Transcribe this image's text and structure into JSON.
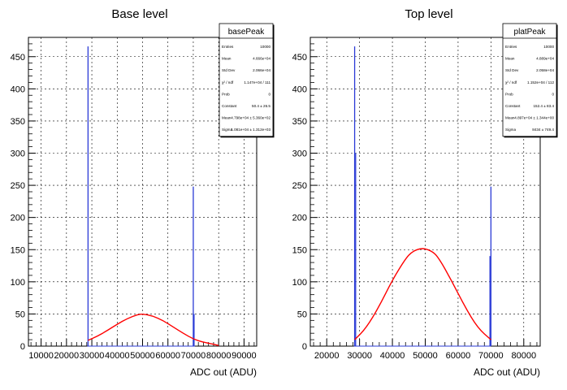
{
  "chart_data": [
    {
      "type": "histogram",
      "title": "Base level",
      "xlabel": "ADC out (ADU)",
      "ylabel": "",
      "xlim": [
        5000,
        95000
      ],
      "ylim": [
        0,
        480
      ],
      "x_ticks": [
        10000,
        20000,
        30000,
        40000,
        50000,
        60000,
        70000,
        80000,
        90000
      ],
      "y_ticks": [
        0,
        50,
        100,
        150,
        200,
        250,
        300,
        350,
        400,
        450
      ],
      "grid": true,
      "spikes": [
        {
          "x": 28500,
          "value": 466
        },
        {
          "x": 70000,
          "value": 248
        },
        {
          "x": 70300,
          "value": 50
        }
      ],
      "fit_curve": {
        "color": "#ff0000",
        "x": [
          28500,
          32000,
          36000,
          40000,
          44000,
          48000,
          50000,
          54000,
          58000,
          62000,
          66000,
          70000,
          74000,
          78000,
          80000
        ],
        "y": [
          9,
          15,
          24,
          34,
          43,
          49,
          50,
          47,
          40,
          30,
          20,
          11,
          6,
          3,
          1
        ]
      },
      "stats": {
        "name": "basePeak",
        "rows": [
          {
            "label": "Entries",
            "value": "10000"
          },
          {
            "label": "Mean",
            "value": "4.666e+04"
          },
          {
            "label": "Std Dev",
            "value": "2.066e+04"
          },
          {
            "label": "χ² / ndf",
            "value": "1.147e+04 / 111"
          },
          {
            "label": "Prob",
            "value": "0"
          },
          {
            "label": "Constant",
            "value": "50.4 ± 26.5"
          },
          {
            "label": "Mean",
            "value": "4.798e+04 ± 5.360e+02"
          },
          {
            "label": "Sigma",
            "value": "1.081e+04 ± 1.312e+03"
          }
        ]
      }
    },
    {
      "type": "histogram",
      "title": "Top level",
      "xlabel": "ADC out (ADU)",
      "ylabel": "",
      "xlim": [
        15000,
        85000
      ],
      "ylim": [
        0,
        480
      ],
      "x_ticks": [
        20000,
        30000,
        40000,
        50000,
        60000,
        70000,
        80000
      ],
      "y_ticks": [
        0,
        50,
        100,
        150,
        200,
        250,
        300,
        350,
        400,
        450
      ],
      "grid": true,
      "spikes": [
        {
          "x": 28500,
          "value": 466
        },
        {
          "x": 28800,
          "value": 300
        },
        {
          "x": 70000,
          "value": 248
        },
        {
          "x": 69700,
          "value": 140
        }
      ],
      "fit_curve": {
        "color": "#ff0000",
        "x": [
          28500,
          32000,
          36000,
          40000,
          44000,
          46000,
          49000,
          52000,
          54000,
          58000,
          62000,
          66000,
          70000
        ],
        "y": [
          10,
          28,
          62,
          103,
          136,
          147,
          153,
          148,
          138,
          102,
          62,
          28,
          10
        ]
      },
      "stats": {
        "name": "platPeak",
        "rows": [
          {
            "label": "Entries",
            "value": "10000"
          },
          {
            "label": "Mean",
            "value": "4.889e+04"
          },
          {
            "label": "Std Dev",
            "value": "2.058e+04"
          },
          {
            "label": "χ² / ndf",
            "value": "1.152e+04 / 112"
          },
          {
            "label": "Prob",
            "value": "0"
          },
          {
            "label": "Constant",
            "value": "152.4 ± 83.4"
          },
          {
            "label": "Mean",
            "value": "4.897e+04 ± 1.344e+00"
          },
          {
            "label": "Sigma",
            "value": "8434 ± 749.4"
          }
        ]
      }
    }
  ]
}
